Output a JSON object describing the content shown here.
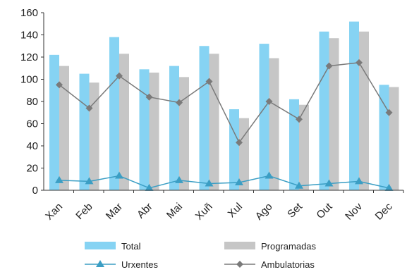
{
  "chart_data": {
    "type": "bar",
    "categories": [
      "Xan",
      "Feb",
      "Mar",
      "Abr",
      "Mai",
      "Xuñ",
      "Xul",
      "Ago",
      "Set",
      "Out",
      "Nov",
      "Dec"
    ],
    "ylim": [
      0,
      160
    ],
    "yticks": [
      0,
      20,
      40,
      60,
      80,
      100,
      120,
      140,
      160
    ],
    "grid": false,
    "legend_position": "bottom",
    "series": [
      {
        "name": "Total",
        "kind": "bar",
        "color": "#86d3f3",
        "values": [
          122,
          105,
          138,
          109,
          112,
          130,
          73,
          132,
          82,
          143,
          152,
          95
        ]
      },
      {
        "name": "Programadas",
        "kind": "bar",
        "color": "#c6c6c6",
        "values": [
          112,
          97,
          123,
          106,
          102,
          123,
          65,
          119,
          77,
          137,
          143,
          93
        ]
      },
      {
        "name": "Urxentes",
        "kind": "line",
        "marker": "triangle",
        "color": "#3b9ec4",
        "values": [
          9,
          8,
          13,
          2,
          9,
          6,
          7,
          13,
          4,
          6,
          8,
          2
        ]
      },
      {
        "name": "Ambulatorias",
        "kind": "line",
        "marker": "diamond",
        "color": "#7a7a7a",
        "values": [
          95,
          74,
          103,
          84,
          79,
          98,
          43,
          80,
          64,
          112,
          115,
          70
        ]
      }
    ]
  }
}
